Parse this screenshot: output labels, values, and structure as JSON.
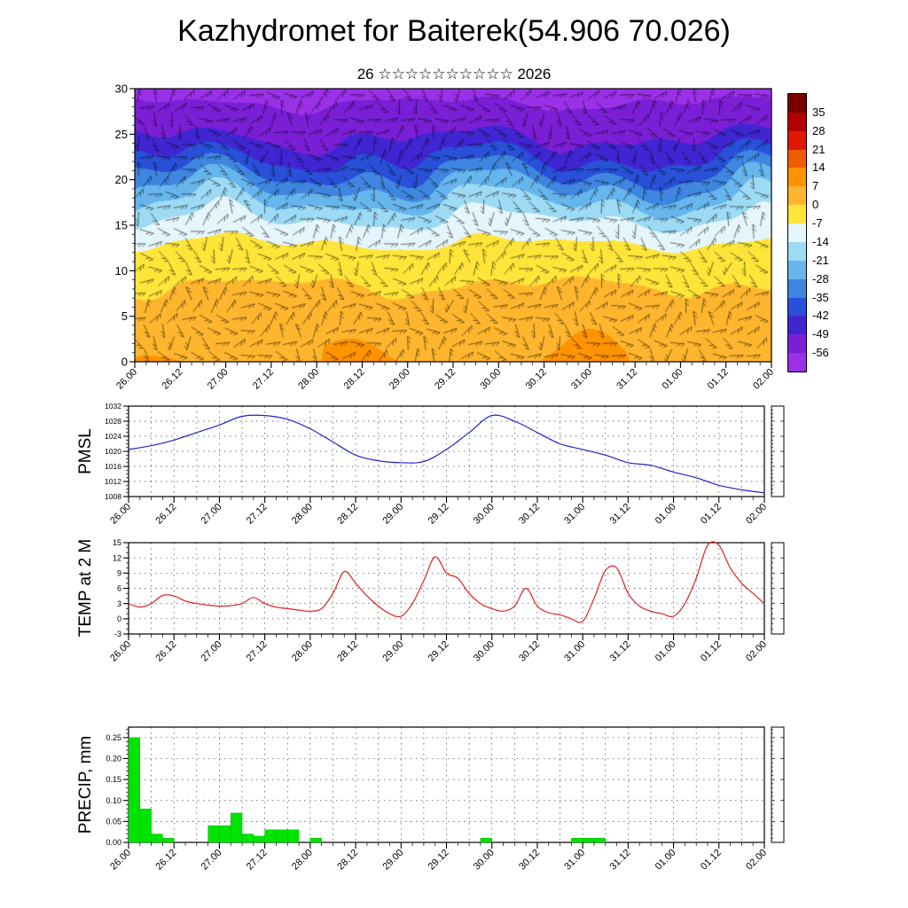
{
  "title": "Kazhydromet for Baiterek(54.906 70.026)",
  "subtitle": "26 ☆☆☆☆☆☆☆☆☆☆ 2026",
  "time_labels": [
    "26.00",
    "26.12",
    "27.00",
    "27.12",
    "28.00",
    "28.12",
    "29.00",
    "29.12",
    "30.00",
    "30.12",
    "31.00",
    "31.12",
    "01.00",
    "01.12",
    "02.00"
  ],
  "chart_data": [
    {
      "name": "temperature-wind-cross-section",
      "type": "heatmap",
      "description": "Time-height cross section: shaded temperature with wind barbs overlaid",
      "x_hours_total": 168,
      "y_range": [
        0,
        30
      ],
      "y_ticks": [
        0,
        5,
        10,
        15,
        20,
        25,
        30
      ],
      "y_minor_step": 1,
      "overlay": "wind-barbs",
      "temp_profile": {
        "heights": [
          0,
          4,
          8,
          11,
          13,
          15,
          17,
          19,
          21,
          23,
          25,
          27,
          30
        ],
        "temps": [
          6.5,
          3.5,
          0.5,
          -3,
          -7,
          -12,
          -19,
          -27,
          -36,
          -44,
          -50,
          -54,
          -58
        ]
      },
      "colorbar": {
        "tick_labels": [
          35,
          28,
          21,
          14,
          7,
          0,
          -7,
          -14,
          -21,
          -28,
          -35,
          -42,
          -49,
          -56
        ],
        "band_colors_low_to_high": [
          "#9a30e8",
          "#7a1fd6",
          "#4026d2",
          "#2850d8",
          "#3f86e0",
          "#66b5ec",
          "#9ddaf4",
          "#e4f5fb",
          "#ffe53a",
          "#ffb62e",
          "#ff9300",
          "#f25c00",
          "#e01800",
          "#b30000",
          "#7a0000"
        ],
        "band_step": 7,
        "min": -63,
        "max": 42
      }
    },
    {
      "name": "pmsl",
      "type": "line",
      "ylabel": "PMSL",
      "line_color": "#2222cc",
      "ylim": [
        1008,
        1032
      ],
      "y_ticks": [
        1008,
        1012,
        1016,
        1020,
        1024,
        1028,
        1032
      ],
      "y_minor_step": 1,
      "x_step_hours": 6,
      "values": [
        1020.5,
        1021.5,
        1023,
        1025,
        1027,
        1029.3,
        1029.5,
        1028.5,
        1026,
        1022.5,
        1019,
        1017.5,
        1017,
        1017.3,
        1020.5,
        1025,
        1029.5,
        1028,
        1025,
        1022,
        1020.5,
        1019,
        1017,
        1016.3,
        1014.5,
        1013,
        1011,
        1009.8,
        1009
      ]
    },
    {
      "name": "temp-2m",
      "type": "line",
      "ylabel": "TEMP at 2 M",
      "line_color": "#dd2222",
      "ylim": [
        -3,
        15
      ],
      "y_ticks": [
        -3,
        0,
        3,
        6,
        9,
        12,
        15
      ],
      "y_minor_step": 1,
      "x_step_hours": 3,
      "values": [
        3,
        2.3,
        3,
        4.6,
        4.5,
        3.5,
        3,
        2.7,
        2.5,
        2.6,
        3,
        4.2,
        3,
        2.3,
        2,
        1.7,
        1.5,
        2,
        5,
        9.3,
        7,
        4.5,
        2.5,
        1,
        0.5,
        3,
        7.5,
        12.2,
        9,
        8,
        5,
        3,
        2,
        1.5,
        2.5,
        6,
        2.5,
        1.2,
        0.8,
        0,
        -0.5,
        4,
        9.5,
        10,
        5,
        2.5,
        1.5,
        1,
        0.5,
        3,
        8,
        14.5,
        14.5,
        10,
        7,
        5,
        3
      ]
    },
    {
      "name": "precip",
      "type": "bar",
      "ylabel": "PRECIP, mm",
      "bar_color": "#00e400",
      "ylim": [
        0,
        0.275
      ],
      "y_ticks": [
        0,
        0.05,
        0.1,
        0.15,
        0.2,
        0.25
      ],
      "y_tick_labels": [
        "0.00",
        "0.05",
        "0.10",
        "0.15",
        "0.20",
        "0.25"
      ],
      "y_minor_step": 0.01,
      "x_step_hours": 3,
      "values": [
        0.25,
        0.08,
        0.02,
        0.01,
        0,
        0,
        0,
        0.04,
        0.04,
        0.07,
        0.02,
        0.015,
        0.03,
        0.03,
        0.03,
        0,
        0.01,
        0,
        0,
        0,
        0,
        0,
        0,
        0,
        0,
        0,
        0,
        0,
        0,
        0,
        0,
        0.01,
        0,
        0,
        0,
        0,
        0,
        0,
        0,
        0.01,
        0.01,
        0.01,
        0,
        0,
        0,
        0,
        0,
        0,
        0,
        0,
        0,
        0,
        0,
        0,
        0,
        0
      ]
    }
  ]
}
